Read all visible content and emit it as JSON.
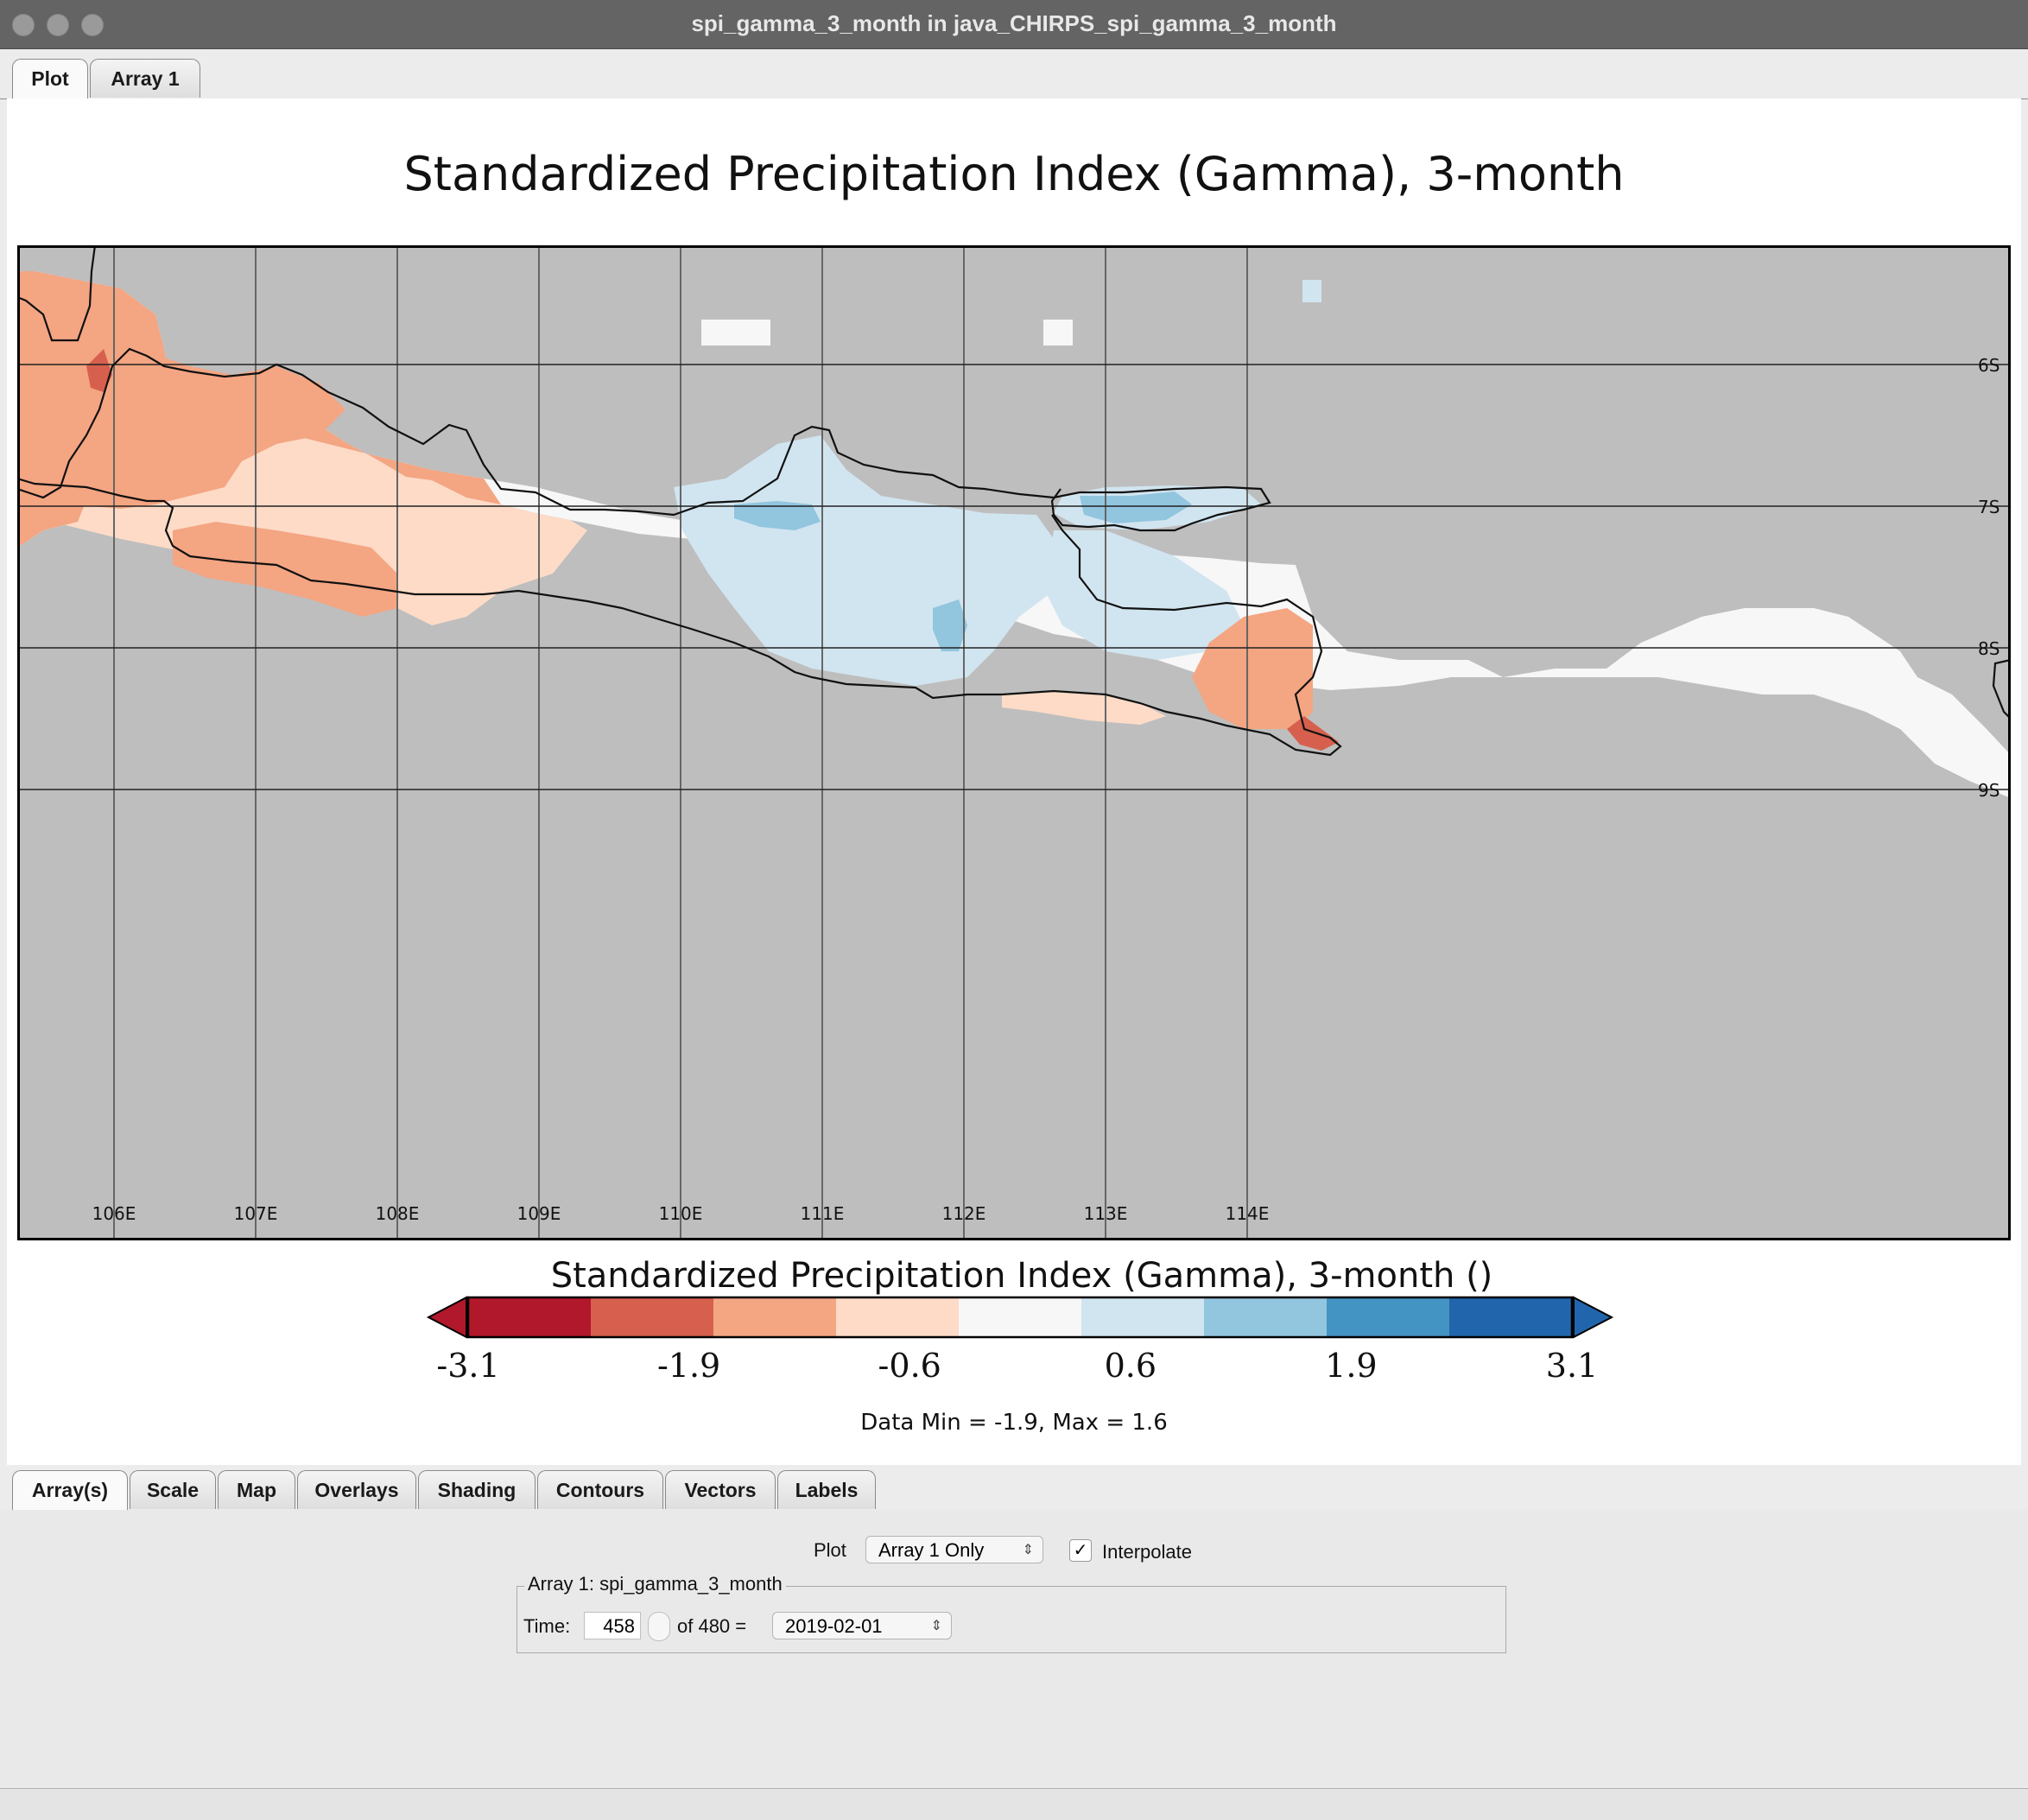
{
  "window": {
    "title": "spi_gamma_3_month in java_CHIRPS_spi_gamma_3_month"
  },
  "top_tabs": [
    "Plot",
    "Array 1"
  ],
  "plot": {
    "title": "Standardized Precipitation Index (Gamma), 3-month",
    "lon_labels": [
      "106E",
      "107E",
      "108E",
      "109E",
      "110E",
      "111E",
      "112E",
      "113E",
      "114E"
    ],
    "lat_labels": [
      "6S",
      "7S",
      "8S",
      "9S"
    ],
    "colorbar": {
      "title": "Standardized Precipitation Index (Gamma), 3-month ()",
      "tick_labels": [
        "-3.1",
        "-1.9",
        "-0.6",
        "0.6",
        "1.9",
        "3.1"
      ],
      "colors": [
        "#b2182b",
        "#d6604d",
        "#f4a582",
        "#fddbc7",
        "#f7f7f7",
        "#d1e5f0",
        "#92c5de",
        "#4393c3",
        "#2166ac"
      ]
    },
    "data_range": "Data Min = -1.9, Max = 1.6",
    "land_color": "#bebebe"
  },
  "bottom_tabs": [
    "Array(s)",
    "Scale",
    "Map",
    "Overlays",
    "Shading",
    "Contours",
    "Vectors",
    "Labels"
  ],
  "controls": {
    "plot_label": "Plot",
    "plot_combo": "Array 1 Only",
    "interpolate_label": "Interpolate",
    "interpolate_checked": "✓",
    "group_title": "Array 1: spi_gamma_3_month",
    "time_label": "Time:",
    "time_value": "458",
    "of_label": "of 480 =",
    "date_combo": "2019-02-01"
  }
}
